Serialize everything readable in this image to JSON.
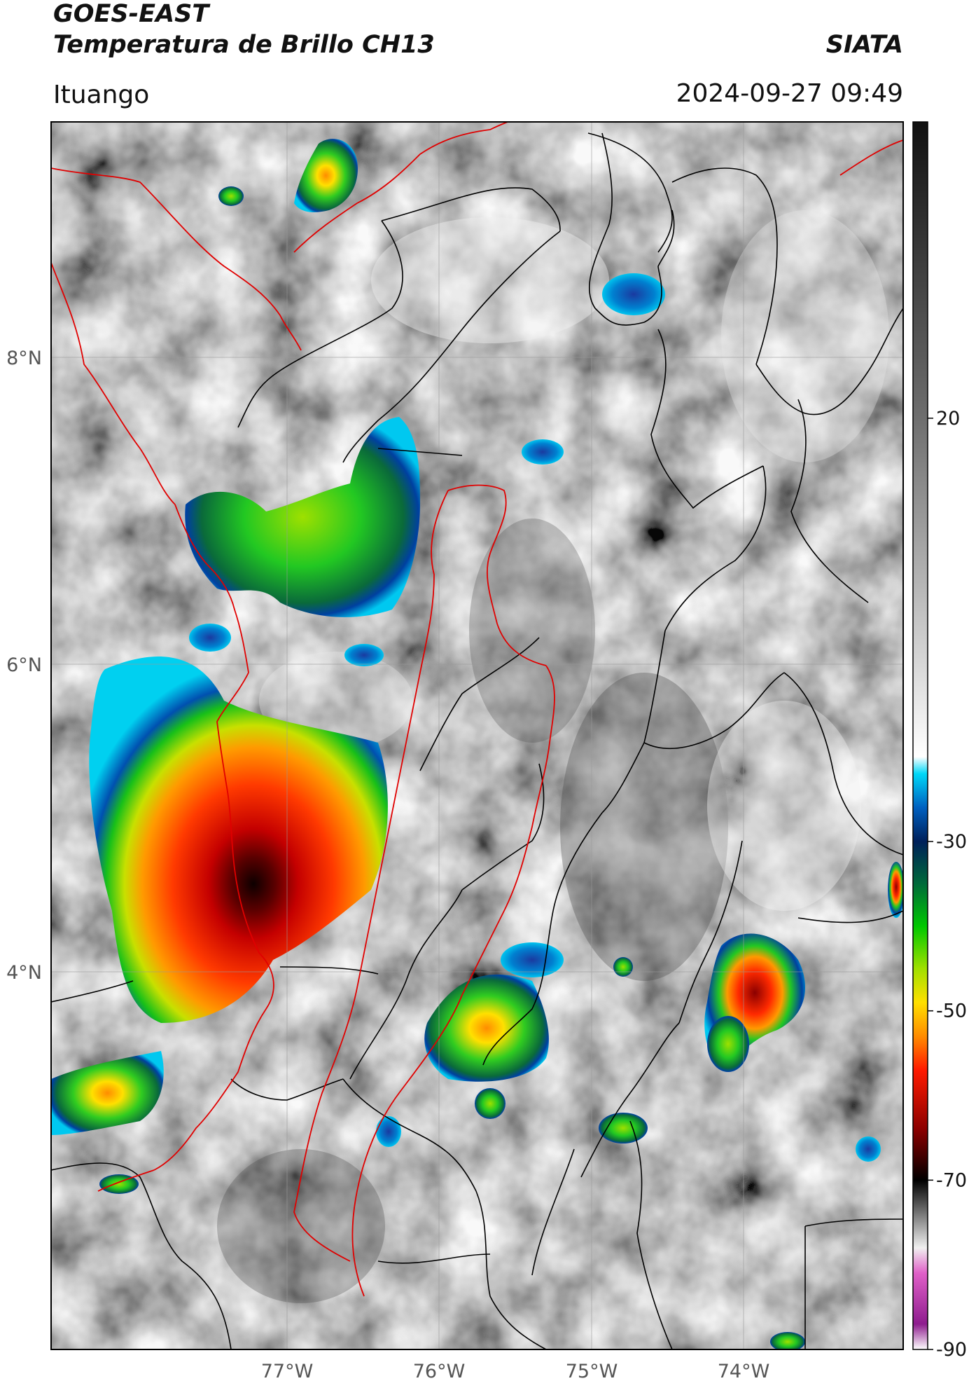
{
  "header": {
    "satellite": "GOES-EAST",
    "product": "Temperatura de Brillo CH13",
    "brand": "SIATA",
    "location": "Ituango",
    "timestamp": "2024-09-27 09:49"
  },
  "map": {
    "lat_labels": [
      "8°N",
      "6°N",
      "4°N"
    ],
    "lon_labels": [
      "77°W",
      "76°W",
      "75°W",
      "74°W"
    ],
    "extent": {
      "lon_min": -78.55,
      "lon_max": -72.95,
      "lat_min": 1.5,
      "lat_max": 9.55
    }
  },
  "colorbar": {
    "tick_labels": [
      "20",
      "-30",
      "-50",
      "-70",
      "-90"
    ],
    "range": [
      -90,
      55
    ],
    "stops": [
      {
        "t": -90,
        "color": "#ffffff"
      },
      {
        "t": -87,
        "color": "#8e1c8e"
      },
      {
        "t": -81,
        "color": "#e060c8"
      },
      {
        "t": -78,
        "color": "#f0f0f0"
      },
      {
        "t": -70,
        "color": "#000000"
      },
      {
        "t": -64,
        "color": "#8b0000"
      },
      {
        "t": -57,
        "color": "#ff1a00"
      },
      {
        "t": -53,
        "color": "#ff8c00"
      },
      {
        "t": -49,
        "color": "#ffe000"
      },
      {
        "t": -45,
        "color": "#a0e000"
      },
      {
        "t": -40,
        "color": "#00c800"
      },
      {
        "t": -35,
        "color": "#006a3a"
      },
      {
        "t": -30,
        "color": "#00205a"
      },
      {
        "t": -26,
        "color": "#0060c0"
      },
      {
        "t": -22,
        "color": "#00d8f8"
      },
      {
        "t": -20,
        "color": "#ffffff"
      },
      {
        "t": 20,
        "color": "#6e6e6e"
      },
      {
        "t": 55,
        "color": "#111111"
      }
    ]
  },
  "storms": [
    {
      "id": "choco-sur-convective-core",
      "lat": 4.75,
      "lon": -77.3,
      "min_temp_c": -72
    },
    {
      "id": "uraba-cluster",
      "lat": 6.7,
      "lon": -76.6,
      "min_temp_c": -45
    },
    {
      "id": "tolima-cell",
      "lat": 3.5,
      "lon": -75.7,
      "min_temp_c": -50
    },
    {
      "id": "meta-cell",
      "lat": 3.95,
      "lon": -74.0,
      "min_temp_c": -62
    },
    {
      "id": "pacific-cell",
      "lat": 2.8,
      "lon": -78.3,
      "min_temp_c": -55
    }
  ],
  "colors": {
    "frame": "#000000",
    "coast_border": "#e00000",
    "admin_border": "#000000",
    "grid": "#9a9a9a"
  }
}
